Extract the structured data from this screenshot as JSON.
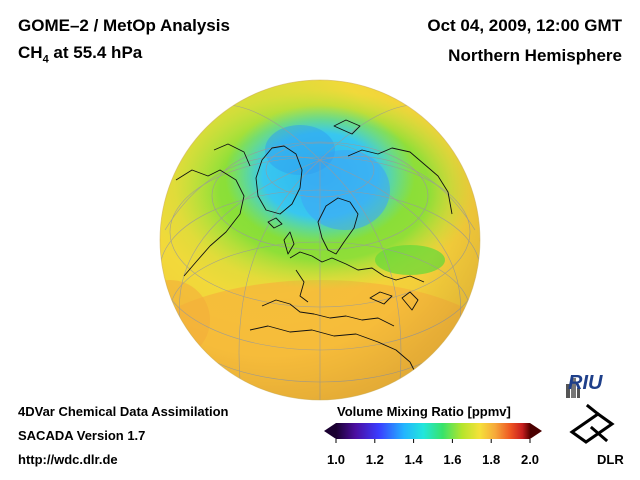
{
  "header": {
    "title": "GOME–2 / MetOp Analysis",
    "species_prefix": "CH",
    "species_subscript": "4",
    "species_suffix": " at 55.4 hPa",
    "datetime": "Oct 04, 2009, 12:00 GMT",
    "region": "Northern Hemisphere"
  },
  "footer": {
    "line1": "4DVar Chemical Data Assimilation",
    "line2": "SACADA Version 1.7",
    "line3": "http://wdc.dlr.de"
  },
  "colorbar": {
    "title": "Volume Mixing Ratio [ppmv]",
    "min": 1.0,
    "max": 2.0,
    "tick_labels": [
      "1.0",
      "1.2",
      "1.4",
      "1.6",
      "1.8",
      "2.0"
    ],
    "colors": [
      "#1a0030",
      "#3b0a8c",
      "#3f3fff",
      "#25b8ff",
      "#20e8e0",
      "#35e36b",
      "#b9e72d",
      "#f5e23a",
      "#f7b13a",
      "#f26522",
      "#cc1f1f",
      "#330000"
    ]
  },
  "logos": {
    "riu": "RIU",
    "dlr": "DLR"
  },
  "map": {
    "projection": "orthographic",
    "center_lat": 60,
    "center_lon": 10
  }
}
